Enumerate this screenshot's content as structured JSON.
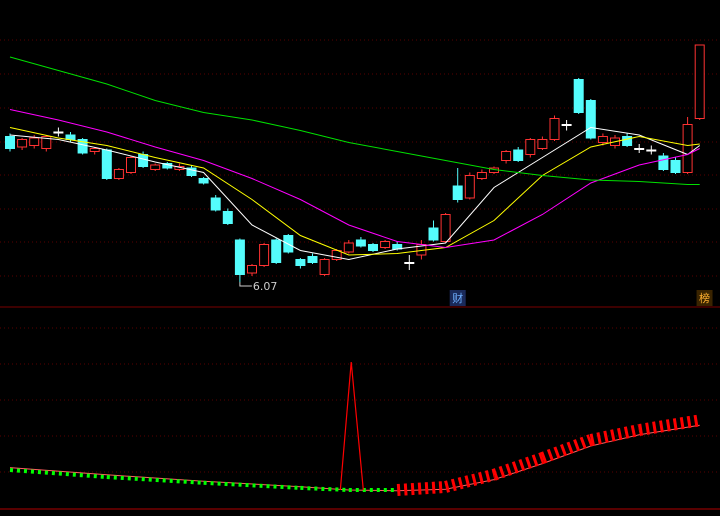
{
  "chart_data": {
    "type": "candlestick",
    "ylim": [
      5.95,
      7.95
    ],
    "up_color": "#ff3232",
    "down_color": "#54fcfc",
    "candles": {
      "open": [
        7.04,
        6.97,
        6.98,
        6.96,
        7.07,
        7.05,
        7.02,
        6.94,
        6.95,
        6.76,
        6.8,
        6.92,
        6.82,
        6.86,
        6.82,
        6.83,
        6.76,
        6.63,
        6.54,
        6.35,
        6.13,
        6.18,
        6.35,
        6.38,
        6.22,
        6.24,
        6.12,
        6.22,
        6.27,
        6.35,
        6.32,
        6.3,
        6.32,
        6.2,
        6.25,
        6.43,
        6.34,
        6.71,
        6.63,
        6.76,
        6.8,
        6.88,
        6.95,
        6.92,
        6.96,
        7.02,
        7.12,
        7.42,
        7.28,
        7.0,
        6.98,
        7.04,
        6.96,
        6.95,
        6.91,
        6.88,
        6.8,
        7.16
      ],
      "high": [
        7.06,
        7.03,
        7.05,
        7.05,
        7.1,
        7.07,
        7.03,
        6.97,
        6.96,
        6.83,
        6.91,
        6.94,
        6.86,
        6.87,
        6.86,
        6.85,
        6.77,
        6.65,
        6.56,
        6.36,
        6.19,
        6.33,
        6.36,
        6.39,
        6.23,
        6.26,
        6.23,
        6.29,
        6.35,
        6.37,
        6.33,
        6.35,
        6.34,
        6.25,
        6.35,
        6.48,
        6.53,
        6.83,
        6.8,
        6.82,
        6.84,
        6.95,
        6.97,
        7.03,
        7.04,
        7.18,
        7.15,
        7.43,
        7.29,
        7.06,
        7.05,
        7.06,
        6.99,
        6.98,
        6.93,
        6.9,
        7.17,
        7.65
      ],
      "low": [
        6.94,
        6.95,
        6.96,
        6.94,
        7.04,
        7.0,
        6.92,
        6.92,
        6.75,
        6.75,
        6.79,
        6.83,
        6.81,
        6.82,
        6.81,
        6.77,
        6.72,
        6.54,
        6.45,
        6.07,
        6.11,
        6.17,
        6.19,
        6.26,
        6.16,
        6.19,
        6.11,
        6.21,
        6.26,
        6.3,
        6.27,
        6.29,
        6.28,
        6.15,
        6.22,
        6.34,
        6.33,
        6.6,
        6.62,
        6.75,
        6.79,
        6.86,
        6.87,
        6.9,
        6.95,
        7.01,
        7.08,
        7.19,
        7.02,
        6.98,
        6.96,
        6.97,
        6.93,
        6.92,
        6.81,
        6.79,
        6.79,
        7.15
      ],
      "close": [
        6.96,
        7.02,
        7.03,
        7.04,
        7.07,
        7.02,
        6.93,
        6.96,
        6.76,
        6.82,
        6.9,
        6.84,
        6.85,
        6.83,
        6.84,
        6.78,
        6.73,
        6.55,
        6.46,
        6.12,
        6.18,
        6.32,
        6.2,
        6.27,
        6.18,
        6.2,
        6.22,
        6.28,
        6.33,
        6.31,
        6.28,
        6.34,
        6.29,
        6.2,
        6.32,
        6.35,
        6.52,
        6.62,
        6.78,
        6.8,
        6.83,
        6.94,
        6.88,
        7.02,
        7.02,
        7.16,
        7.12,
        7.2,
        7.03,
        7.04,
        7.03,
        6.98,
        6.96,
        6.95,
        6.82,
        6.8,
        7.12,
        7.65
      ]
    },
    "lines": [
      {
        "color": "#ffffff",
        "x": [
          0,
          4,
          8,
          12,
          16,
          20,
          24,
          28,
          32,
          36,
          40,
          44,
          48,
          52,
          56,
          57
        ],
        "values": [
          7.05,
          7.02,
          6.95,
          6.87,
          6.8,
          6.45,
          6.28,
          6.22,
          6.29,
          6.33,
          6.7,
          6.9,
          7.1,
          7.05,
          6.92,
          6.98
        ]
      },
      {
        "color": "#ffff00",
        "x": [
          0,
          4,
          8,
          12,
          16,
          20,
          24,
          28,
          32,
          36,
          40,
          44,
          48,
          52,
          56,
          57
        ],
        "values": [
          7.1,
          7.03,
          6.98,
          6.9,
          6.83,
          6.62,
          6.38,
          6.25,
          6.26,
          6.3,
          6.48,
          6.78,
          6.97,
          7.04,
          6.98,
          6.99
        ]
      },
      {
        "color": "#ff00ff",
        "x": [
          0,
          4,
          8,
          12,
          16,
          20,
          24,
          28,
          32,
          36,
          40,
          44,
          48,
          52,
          56,
          57
        ],
        "values": [
          7.22,
          7.15,
          7.07,
          6.97,
          6.88,
          6.76,
          6.62,
          6.45,
          6.34,
          6.3,
          6.35,
          6.52,
          6.73,
          6.85,
          6.92,
          6.96
        ]
      },
      {
        "color": "#00e000",
        "x": [
          0,
          4,
          8,
          12,
          16,
          20,
          24,
          28,
          32,
          36,
          40,
          44,
          48,
          52,
          56,
          57
        ],
        "values": [
          7.57,
          7.48,
          7.39,
          7.28,
          7.2,
          7.15,
          7.08,
          7.0,
          6.94,
          6.88,
          6.82,
          6.78,
          6.75,
          6.74,
          6.72,
          6.72
        ]
      }
    ],
    "min_label": 6.07,
    "markers": [
      {
        "text": "财",
        "x": 37
      },
      {
        "text": "榜",
        "x": 57.4
      }
    ],
    "indicator": {
      "ylim": [
        0,
        100
      ],
      "x": [
        0,
        8,
        16,
        24,
        28,
        32,
        36,
        40,
        44,
        48,
        52,
        57
      ],
      "values": [
        25,
        20.6,
        17,
        13.8,
        12.5,
        12.5,
        14.4,
        22,
        32.5,
        43.75,
        50,
        56
      ],
      "signal": [
        26.5,
        22,
        18,
        14.5,
        12.5,
        12,
        13,
        19,
        29,
        40,
        47,
        53
      ],
      "up_color": "#ff0000",
      "down_color": "#00ff00",
      "spike": {
        "color": "#ff0000",
        "x": [
          27.3,
          28.2,
          29.2
        ],
        "values": [
          12.5,
          92.5,
          12.5
        ]
      }
    }
  }
}
